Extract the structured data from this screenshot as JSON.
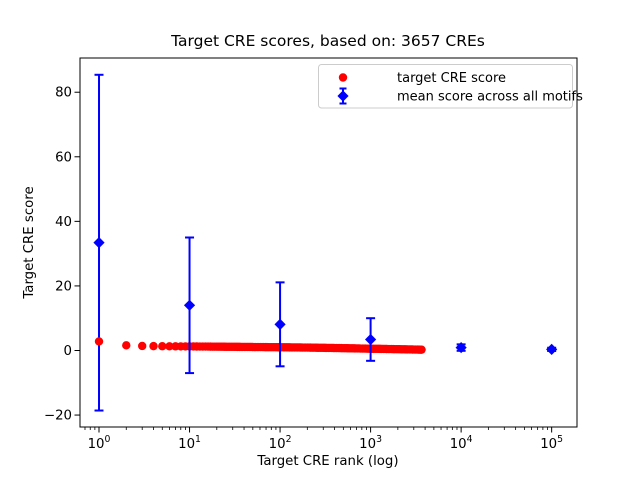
{
  "chart_data": {
    "type": "scatter",
    "title": "Target CRE scores, based on: 3657 CREs",
    "xlabel": "Target CRE rank (log)",
    "ylabel": "Target CRE score",
    "x_scale": "log",
    "x_tick_exponents": [
      0,
      1,
      2,
      3,
      4,
      5
    ],
    "y_ticks": [
      -20,
      0,
      20,
      40,
      60,
      80
    ],
    "xlim_log": [
      -0.21,
      5.28
    ],
    "ylim": [
      -23.7,
      90.6
    ],
    "grid": false,
    "n_cres": 3657,
    "series": [
      {
        "name": "target CRE score",
        "plot_type": "scatter",
        "color": "#ff0000",
        "marker": "circle",
        "n_points": 3657,
        "rank_range": [
          1,
          3657
        ],
        "keypoints_rank": [
          1,
          2,
          3,
          4,
          5,
          7,
          10,
          20,
          50,
          100,
          200,
          500,
          1000,
          2000,
          3657
        ],
        "keypoints_score": [
          2.8,
          1.6,
          1.4,
          1.35,
          1.32,
          1.28,
          1.25,
          1.18,
          1.08,
          1.0,
          0.9,
          0.72,
          0.55,
          0.4,
          0.25
        ]
      },
      {
        "name": "mean score across all motifs",
        "plot_type": "errorbar",
        "color": "#0000ff",
        "marker": "diamond",
        "x": [
          1,
          10,
          100,
          1000,
          10000,
          100000
        ],
        "mean": [
          33.4,
          14.0,
          8.1,
          3.4,
          0.9,
          0.35
        ],
        "err": [
          52.0,
          21.0,
          13.0,
          6.6,
          1.0,
          0.5
        ]
      }
    ],
    "legend": {
      "position": "upper right",
      "entries": [
        "target CRE score",
        "mean score across all motifs"
      ]
    }
  },
  "colors": {
    "red": "#ff0000",
    "blue": "#0000ff",
    "axis": "#000000",
    "legend_border": "#cccccc",
    "background": "#ffffff"
  }
}
